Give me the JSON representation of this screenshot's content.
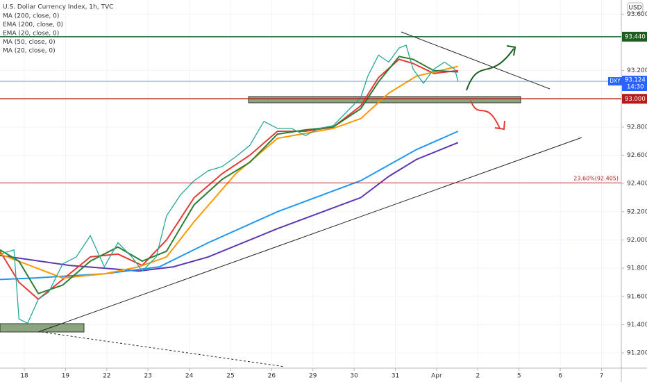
{
  "chart_data": {
    "type": "line",
    "title": "U.S. Dollar Currency Index, 1h, TVC",
    "currency": "USD",
    "ylim": [
      91.092,
      93.7
    ],
    "xlim": [
      -0.59,
      14.48
    ],
    "yticks": [
      {
        "value": 91.2,
        "label": "91.200"
      },
      {
        "value": 91.4,
        "label": "91.400"
      },
      {
        "value": 91.6,
        "label": "91.600"
      },
      {
        "value": 91.8,
        "label": "91.800"
      },
      {
        "value": 92.0,
        "label": "92.000"
      },
      {
        "value": 92.2,
        "label": "92.200"
      },
      {
        "value": 92.4,
        "label": "92.400"
      },
      {
        "value": 92.6,
        "label": "92.600"
      },
      {
        "value": 92.8,
        "label": "92.800"
      },
      {
        "value": 93.2,
        "label": "93.200"
      },
      {
        "value": 93.6,
        "label": "93.600"
      }
    ],
    "xticks": [
      {
        "value": 0,
        "label": "18"
      },
      {
        "value": 1,
        "label": "19"
      },
      {
        "value": 2,
        "label": "22"
      },
      {
        "value": 3,
        "label": "23"
      },
      {
        "value": 4,
        "label": "24"
      },
      {
        "value": 5,
        "label": "25"
      },
      {
        "value": 6,
        "label": "26"
      },
      {
        "value": 7,
        "label": "29"
      },
      {
        "value": 8,
        "label": "30"
      },
      {
        "value": 9,
        "label": "31"
      },
      {
        "value": 10,
        "label": "Apr"
      },
      {
        "value": 11,
        "label": "2"
      },
      {
        "value": 12,
        "label": "5"
      },
      {
        "value": 13,
        "label": "6"
      },
      {
        "value": 14,
        "label": "7"
      }
    ],
    "price": {
      "color": "#26a69a",
      "x": [
        -0.59,
        -0.25,
        -0.13,
        0.08,
        0.34,
        0.59,
        0.93,
        1.26,
        1.6,
        1.94,
        2.27,
        2.61,
        2.86,
        3.2,
        3.45,
        3.79,
        4.12,
        4.46,
        4.8,
        5.13,
        5.47,
        5.81,
        6.14,
        6.48,
        6.82,
        7.15,
        7.49,
        7.83,
        8.16,
        8.33,
        8.59,
        8.84,
        9.09,
        9.26,
        9.43,
        9.68,
        9.93,
        10.19,
        10.44,
        10.52
      ],
      "values": [
        91.9,
        91.93,
        91.44,
        91.41,
        91.58,
        91.63,
        91.83,
        91.88,
        92.03,
        91.81,
        91.98,
        91.88,
        91.78,
        91.88,
        92.17,
        92.32,
        92.42,
        92.49,
        92.52,
        92.59,
        92.67,
        92.84,
        92.79,
        92.79,
        92.74,
        92.79,
        92.81,
        92.91,
        93.01,
        93.16,
        93.31,
        93.26,
        93.36,
        93.38,
        93.21,
        93.11,
        93.21,
        93.26,
        93.21,
        93.124
      ]
    },
    "series": [
      {
        "name": "MA (200, close, 0)",
        "color": "#5e35b1",
        "x": [
          -0.59,
          1.09,
          2.78,
          3.62,
          4.46,
          6.14,
          8.16,
          8.84,
          9.51,
          10.52
        ],
        "values": [
          91.89,
          91.82,
          91.78,
          91.81,
          91.88,
          92.08,
          92.3,
          92.45,
          92.57,
          92.69
        ]
      },
      {
        "name": "EMA (200, close, 0)",
        "color": "#2196f3",
        "x": [
          -0.59,
          0.25,
          1.94,
          3.28,
          4.46,
          6.14,
          8.16,
          9.51,
          10.52
        ],
        "values": [
          91.72,
          91.73,
          91.76,
          91.81,
          91.98,
          92.2,
          92.42,
          92.64,
          92.77
        ]
      },
      {
        "name": "EMA (20, close, 0)",
        "color": "#e53935",
        "x": [
          -0.59,
          -0.13,
          0.34,
          0.93,
          1.6,
          2.27,
          2.86,
          3.45,
          4.12,
          4.8,
          5.47,
          6.14,
          6.82,
          7.49,
          8.16,
          8.59,
          9.09,
          9.43,
          9.93,
          10.52
        ],
        "values": [
          91.92,
          91.7,
          91.58,
          91.72,
          91.88,
          91.9,
          91.82,
          92.0,
          92.3,
          92.47,
          92.6,
          92.77,
          92.77,
          92.8,
          92.95,
          93.15,
          93.28,
          93.25,
          93.18,
          93.2
        ]
      },
      {
        "name": "MA (50, close, 0)",
        "color": "#ff9800",
        "x": [
          -0.59,
          0.93,
          1.94,
          2.78,
          3.45,
          4.12,
          5.13,
          6.14,
          7.49,
          8.16,
          8.84,
          9.51,
          10.52
        ],
        "values": [
          91.9,
          91.73,
          91.76,
          91.81,
          91.88,
          92.13,
          92.47,
          92.72,
          92.79,
          92.86,
          93.04,
          93.16,
          93.23
        ]
      },
      {
        "name": "MA (20, close, 0)",
        "color": "#2e7d32",
        "x": [
          -0.59,
          -0.13,
          0.34,
          0.93,
          1.6,
          2.27,
          2.86,
          3.45,
          4.12,
          4.8,
          5.47,
          6.14,
          6.82,
          7.49,
          8.16,
          8.59,
          9.09,
          9.43,
          9.93,
          10.52
        ],
        "values": [
          91.93,
          91.85,
          91.62,
          91.68,
          91.85,
          91.95,
          91.85,
          91.92,
          92.25,
          92.43,
          92.55,
          92.75,
          92.78,
          92.8,
          92.93,
          93.12,
          93.3,
          93.28,
          93.2,
          93.19
        ]
      }
    ],
    "levels": [
      {
        "value": 93.44,
        "label": "93.440",
        "color": "#1b5e20",
        "axis_tag": true
      },
      {
        "value": 93.0,
        "label": "93.000",
        "color": "#b71c1c",
        "axis_tag": true
      },
      {
        "value": 92.405,
        "label": "23.60%(92.405)",
        "color": "#b71c1c",
        "axis_tag": false
      }
    ],
    "last": {
      "name": "DXY",
      "value": 93.124,
      "label": "93.124",
      "time": "14:30",
      "color": "#2962ff"
    }
  }
}
